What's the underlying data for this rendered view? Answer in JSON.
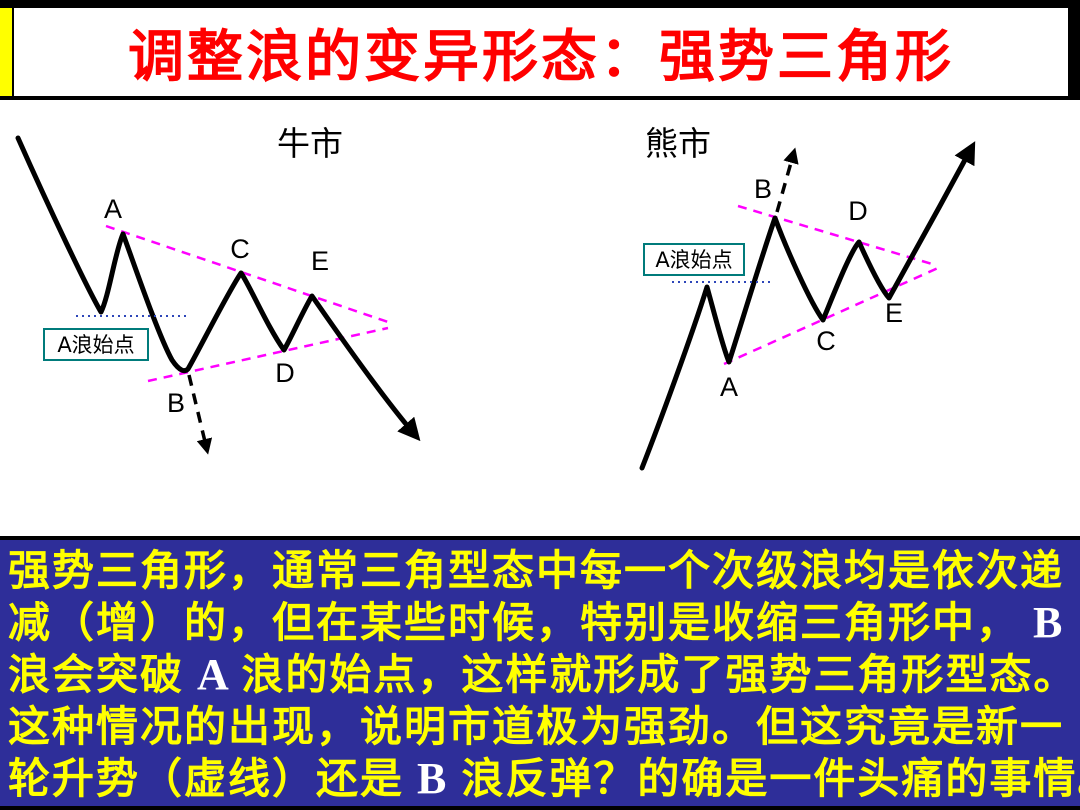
{
  "title": "调整浪的变异形态：强势三角形",
  "bull": {
    "market_label": "牛市",
    "waves": [
      "A",
      "B",
      "C",
      "D",
      "E"
    ],
    "annotation": "A浪始点"
  },
  "bear": {
    "market_label": "熊市",
    "waves": [
      "A",
      "B",
      "C",
      "D",
      "E"
    ],
    "annotation": "A浪始点"
  },
  "explanation": {
    "lines": [
      [
        {
          "t": "强势三角形，通常三角型态中每一个次级浪均是依次递",
          "c": "y"
        }
      ],
      [
        {
          "t": "减（增）的，但在某些时候，特别是收缩三角形中，",
          "c": "y"
        },
        {
          "t": " B",
          "c": "w"
        }
      ],
      [
        {
          "t": "浪会突破",
          "c": "y"
        },
        {
          "t": " A ",
          "c": "w"
        },
        {
          "t": "浪的始点，这样就形成了强势三角形型态。",
          "c": "y"
        }
      ],
      [
        {
          "t": "这种情况的出现，说明市道极为强劲。但这究竟是新一",
          "c": "y"
        }
      ],
      [
        {
          "t": "轮升势（虚线）还是",
          "c": "y"
        },
        {
          "t": " B ",
          "c": "w"
        },
        {
          "t": "浪反弹？的确是一件头痛的事情。",
          "c": "y"
        }
      ]
    ]
  },
  "colors": {
    "title_text": "#ff0000",
    "banner_bg": "#ffffff",
    "banner_accent": "#ffff00",
    "panel_bg": "#2e2e99",
    "panel_text": "#ffff00",
    "panel_latin_text": "#ffffff",
    "trendline": "#ff00ff",
    "annotation_border": "#007b7b",
    "dotted_line": "#2d46b9",
    "curve": "#000000"
  }
}
